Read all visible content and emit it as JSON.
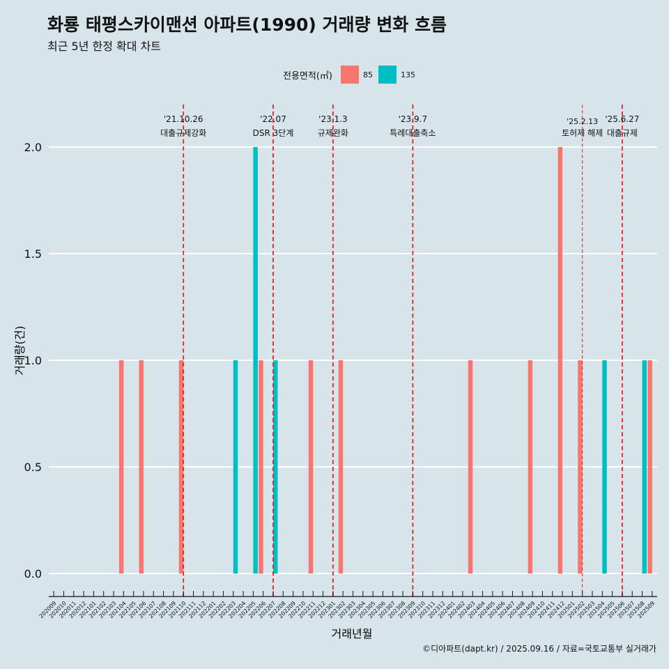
{
  "title": "화룡 태평스카이맨션 아파트(1990) 거래량 변화 흐름",
  "subtitle": "최근 5년 한정 확대 차트",
  "legend": {
    "title": "전용면적(㎡)",
    "items": [
      {
        "label": "85",
        "color": "#f8766d"
      },
      {
        "label": "135",
        "color": "#00bfc4"
      }
    ]
  },
  "caption": "©디아파트(dapt.kr) / 2025.09.16 / 자료=국토교통부 실거래가",
  "chart_data": {
    "type": "bar",
    "title": "화룡 태평스카이맨션 아파트(1990) 거래량 변화 흐름",
    "subtitle": "최근 5년 한정 확대 차트",
    "xlabel": "거래년월",
    "ylabel": "거래량(건)",
    "ylim": [
      0,
      2
    ],
    "yticks": [
      "0.0",
      "0.5",
      "1.0",
      "1.5",
      "2.0"
    ],
    "grid": "horizontal",
    "legend_position": "top",
    "categories": [
      "202009",
      "202010",
      "202011",
      "202012",
      "202101",
      "202102",
      "202103",
      "202104",
      "202105",
      "202106",
      "202107",
      "202108",
      "202109",
      "202110",
      "202111",
      "202112",
      "202201",
      "202202",
      "202203",
      "202204",
      "202205",
      "202206",
      "202207",
      "202208",
      "202209",
      "202210",
      "202211",
      "202212",
      "202301",
      "202302",
      "202303",
      "202304",
      "202305",
      "202306",
      "202307",
      "202308",
      "202309",
      "202310",
      "202311",
      "202312",
      "202401",
      "202402",
      "202403",
      "202404",
      "202405",
      "202406",
      "202407",
      "202408",
      "202409",
      "202410",
      "202411",
      "202412",
      "202501",
      "202502",
      "202503",
      "202504",
      "202505",
      "202506",
      "202507",
      "202508",
      "202509"
    ],
    "series": [
      {
        "name": "85",
        "color": "#f8766d",
        "values": [
          0,
          0,
          0,
          0,
          0,
          0,
          0,
          1,
          0,
          1,
          0,
          0,
          0,
          1,
          0,
          0,
          0,
          0,
          0,
          0,
          0,
          1,
          0,
          0,
          0,
          0,
          1,
          0,
          0,
          1,
          0,
          0,
          0,
          0,
          0,
          0,
          0,
          0,
          0,
          0,
          0,
          0,
          1,
          0,
          0,
          0,
          0,
          0,
          1,
          0,
          0,
          2,
          0,
          1,
          0,
          0,
          0,
          0,
          0,
          0,
          1
        ]
      },
      {
        "name": "135",
        "color": "#00bfc4",
        "values": [
          0,
          0,
          0,
          0,
          0,
          0,
          0,
          0,
          0,
          0,
          0,
          0,
          0,
          0,
          0,
          0,
          0,
          0,
          1,
          0,
          2,
          0,
          1,
          0,
          0,
          0,
          0,
          0,
          0,
          0,
          0,
          0,
          0,
          0,
          0,
          0,
          0,
          0,
          0,
          0,
          0,
          0,
          0,
          0,
          0,
          0,
          0,
          0,
          0,
          0,
          0,
          0,
          0,
          0,
          0,
          1,
          0,
          0,
          0,
          1,
          0
        ]
      }
    ],
    "annotations": [
      {
        "month": "202110",
        "date": "'21.10.26",
        "label": "대출규제강화",
        "style": "dashed"
      },
      {
        "month": "202207",
        "date": "'22.07",
        "label": "DSR 3단계",
        "style": "dashed"
      },
      {
        "month": "202301",
        "date": "'23.1.3",
        "label": "규제완화",
        "style": "dashed"
      },
      {
        "month": "202309",
        "date": "'23.9.7",
        "label": "특례대출축소",
        "style": "dashed"
      },
      {
        "month": "202502",
        "date": "'25.2.13",
        "label": "토허제 해제",
        "style": "thin-dashed"
      },
      {
        "month": "202506",
        "date": "'25.6.27",
        "label": "대출규제",
        "style": "dashed"
      }
    ]
  }
}
